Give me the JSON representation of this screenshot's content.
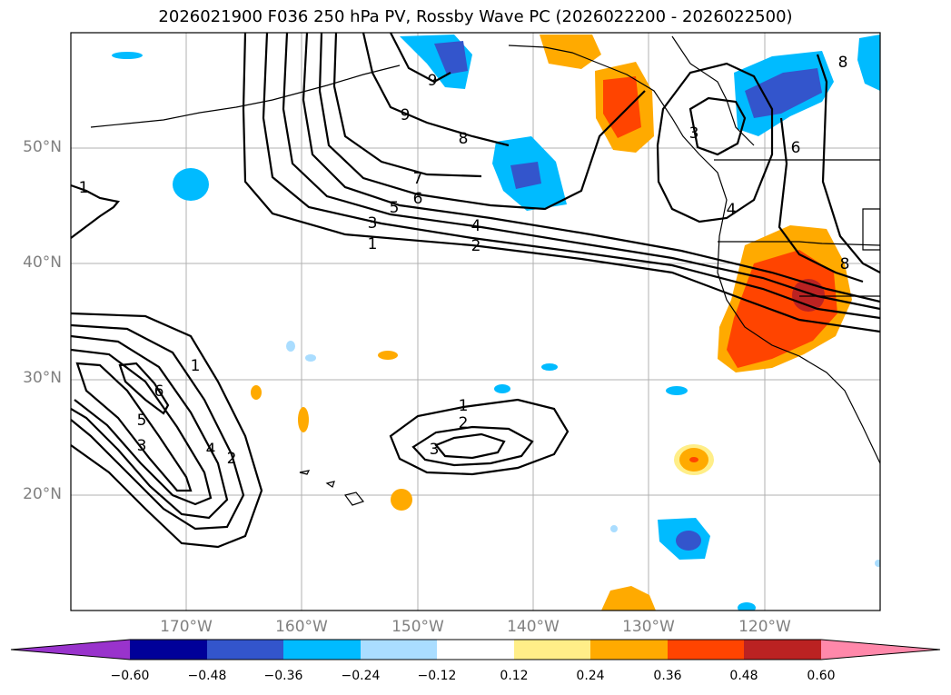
{
  "title": "2026021900 F036 250 hPa PV, Rossby Wave PC (2026022200 - 2026022500)",
  "lat_labels": [
    "50°N",
    "40°N",
    "30°N",
    "20°N"
  ],
  "lon_labels": [
    "170°W",
    "160°W",
    "150°W",
    "140°W",
    "130°W",
    "120°W"
  ],
  "colorbar": {
    "ticks": [
      "−0.60",
      "−0.48",
      "−0.36",
      "−0.24",
      "−0.12",
      "0.12",
      "0.24",
      "0.36",
      "0.48",
      "0.60"
    ],
    "colors": [
      "#9933cc",
      "#000099",
      "#3355cc",
      "#00bbff",
      "#aaddff",
      "#ffffff",
      "#ffee88",
      "#ffaa00",
      "#ff4400",
      "#bb2222",
      "#ff88aa"
    ]
  },
  "pv_contour_labels": [
    "1",
    "2",
    "3",
    "4",
    "5",
    "6",
    "7",
    "8",
    "9"
  ],
  "chart_data": {
    "type": "map",
    "title": "2026021900 F036 250 hPa PV, Rossby Wave PC (2026022200 - 2026022500)",
    "lon_range": [
      -180,
      -110
    ],
    "lat_range": [
      10,
      60
    ],
    "contour_variable": "250 hPa PV",
    "contour_levels": [
      1,
      2,
      3,
      4,
      5,
      6,
      7,
      8,
      9
    ],
    "shading_variable": "Rossby Wave PC",
    "shading_levels": [
      -0.6,
      -0.48,
      -0.36,
      -0.24,
      -0.12,
      0.12,
      0.24,
      0.36,
      0.48,
      0.6
    ]
  }
}
